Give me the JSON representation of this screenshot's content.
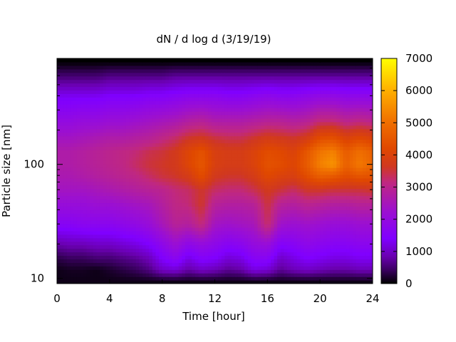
{
  "chart_data": {
    "type": "heatmap",
    "title": "dN / d log d (3/19/19)",
    "xlabel": "Time [hour]",
    "ylabel": "Particle size [nm]",
    "x_ticks": [
      "0",
      "4",
      "8",
      "12",
      "16",
      "20",
      "24"
    ],
    "x_tick_values": [
      0,
      4,
      8,
      12,
      16,
      20,
      24
    ],
    "xlim": [
      0,
      24
    ],
    "y_scale": "log",
    "y_ticks": [
      "10",
      "100"
    ],
    "y_tick_values": [
      10,
      100
    ],
    "ylim": [
      9,
      850
    ],
    "colorbar_ticks": [
      "0",
      "1000",
      "2000",
      "3000",
      "4000",
      "5000",
      "6000",
      "7000"
    ],
    "colorbar_tick_values": [
      0,
      1000,
      2000,
      3000,
      4000,
      5000,
      6000,
      7000
    ],
    "color_range": [
      0,
      7000
    ],
    "colormap": [
      "#000000",
      "#3a0060",
      "#6a00b0",
      "#8000ff",
      "#9c10d0",
      "#c02880",
      "#d03820",
      "#e04800",
      "#f07000",
      "#ffb000",
      "#ffff00"
    ],
    "colormap_stops": [
      0,
      0.06,
      0.12,
      0.2,
      0.32,
      0.45,
      0.52,
      0.6,
      0.72,
      0.86,
      1
    ],
    "time_hours": [
      0,
      1,
      2,
      3,
      4,
      5,
      6,
      7,
      8,
      9,
      10,
      11,
      12,
      13,
      14,
      15,
      16,
      17,
      18,
      19,
      20,
      21,
      22,
      23,
      24
    ],
    "size_nm": [
      9.5,
      12,
      15,
      20,
      30,
      45,
      60,
      80,
      100,
      130,
      170,
      250,
      400,
      600,
      800
    ],
    "values": [
      [
        100,
        100,
        100,
        100,
        100,
        100,
        100,
        100,
        100,
        100,
        100,
        100,
        100,
        100,
        100,
        100,
        100,
        100,
        100,
        100,
        100,
        100,
        100,
        100,
        100
      ],
      [
        100,
        150,
        150,
        100,
        200,
        300,
        400,
        600,
        1000,
        1100,
        800,
        1000,
        900,
        700,
        800,
        1200,
        1100,
        700,
        900,
        1000,
        900,
        800,
        800,
        900,
        900
      ],
      [
        300,
        400,
        400,
        500,
        500,
        600,
        700,
        900,
        1400,
        1700,
        1200,
        1500,
        1400,
        1100,
        1200,
        1600,
        1600,
        1000,
        1200,
        1400,
        1300,
        1200,
        1200,
        1300,
        1300
      ],
      [
        800,
        900,
        900,
        1000,
        1000,
        1100,
        1200,
        1400,
        1800,
        2200,
        1800,
        2000,
        1800,
        1600,
        1700,
        2000,
        2100,
        1500,
        1600,
        1800,
        1700,
        1600,
        1600,
        1700,
        1700
      ],
      [
        1600,
        1600,
        1700,
        1700,
        1700,
        1800,
        1900,
        2100,
        2500,
        2900,
        2800,
        3200,
        2400,
        2300,
        2400,
        2500,
        3300,
        2300,
        2200,
        2300,
        2200,
        2100,
        2100,
        2200,
        2200
      ],
      [
        2100,
        2100,
        2100,
        2200,
        2200,
        2300,
        2400,
        2500,
        2800,
        3100,
        3200,
        3600,
        2900,
        2800,
        2800,
        2900,
        3500,
        2900,
        2800,
        3000,
        2900,
        2800,
        2800,
        2900,
        2900
      ],
      [
        2400,
        2400,
        2400,
        2500,
        2600,
        2700,
        2800,
        2900,
        3000,
        3200,
        3300,
        3600,
        3300,
        3200,
        3200,
        3400,
        3700,
        3500,
        3300,
        3600,
        3600,
        3500,
        3500,
        3500,
        3600
      ],
      [
        2600,
        2600,
        2700,
        2800,
        2900,
        3000,
        3100,
        3300,
        3500,
        3600,
        3800,
        4300,
        3700,
        3600,
        3600,
        3800,
        4200,
        4000,
        3900,
        4300,
        4700,
        4600,
        4300,
        4500,
        4400
      ],
      [
        2700,
        2700,
        2800,
        2900,
        3000,
        3100,
        3300,
        3500,
        3600,
        3700,
        4100,
        4500,
        3900,
        3800,
        3800,
        4000,
        4400,
        4300,
        4100,
        4600,
        5300,
        5600,
        4700,
        5200,
        4800
      ],
      [
        2700,
        2700,
        2800,
        2900,
        3000,
        3100,
        3200,
        3400,
        3500,
        3700,
        4100,
        4400,
        3900,
        3800,
        3800,
        4000,
        4300,
        4200,
        4000,
        4500,
        5100,
        5300,
        4600,
        5000,
        4700
      ],
      [
        2400,
        2400,
        2500,
        2600,
        2700,
        2700,
        2800,
        2900,
        3100,
        3300,
        3600,
        3700,
        3500,
        3400,
        3400,
        3600,
        3800,
        3700,
        3600,
        3800,
        4300,
        4400,
        4000,
        4200,
        4000
      ],
      [
        1900,
        1900,
        2000,
        2000,
        2100,
        2100,
        2200,
        2300,
        2400,
        2500,
        2700,
        2800,
        2600,
        2600,
        2600,
        2700,
        2800,
        2800,
        2700,
        2800,
        3100,
        3100,
        2900,
        3000,
        2900
      ],
      [
        1300,
        1300,
        1300,
        1300,
        1400,
        1400,
        1400,
        1500,
        1500,
        1600,
        1700,
        1700,
        1700,
        1600,
        1600,
        1700,
        1800,
        1700,
        1700,
        1800,
        1900,
        1900,
        1800,
        1800,
        1800
      ],
      [
        500,
        500,
        500,
        500,
        600,
        600,
        600,
        600,
        600,
        700,
        700,
        700,
        700,
        700,
        700,
        700,
        700,
        700,
        700,
        700,
        700,
        700,
        700,
        700,
        700
      ],
      [
        0,
        0,
        0,
        0,
        0,
        0,
        0,
        0,
        0,
        0,
        0,
        0,
        0,
        0,
        0,
        0,
        0,
        0,
        0,
        0,
        0,
        0,
        0,
        0,
        0
      ]
    ]
  }
}
